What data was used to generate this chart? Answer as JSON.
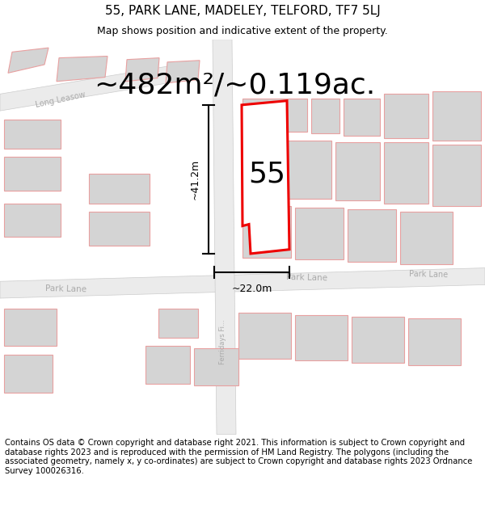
{
  "title": "55, PARK LANE, MADELEY, TELFORD, TF7 5LJ",
  "subtitle": "Map shows position and indicative extent of the property.",
  "area_text": "~482m²/~0.119ac.",
  "dim_vertical": "~41.2m",
  "dim_horizontal": "~22.0m",
  "label_55": "55",
  "footer": "Contains OS data © Crown copyright and database right 2021. This information is subject to Crown copyright and database rights 2023 and is reproduced with the permission of HM Land Registry. The polygons (including the associated geometry, namely x, y co-ordinates) are subject to Crown copyright and database rights 2023 Ordnance Survey 100026316.",
  "bg_color": "#ffffff",
  "map_bg": "#ffffff",
  "building_outline_color": "#e8a0a0",
  "building_fill_color": "#d4d4d4",
  "property_outline_color": "#ee0000",
  "property_fill_color": "#ffffff",
  "road_fill": "#e8e8e8",
  "road_text_color": "#999999",
  "title_fontsize": 11,
  "subtitle_fontsize": 9,
  "area_fontsize": 26,
  "label_fontsize": 26,
  "footer_fontsize": 7.2
}
